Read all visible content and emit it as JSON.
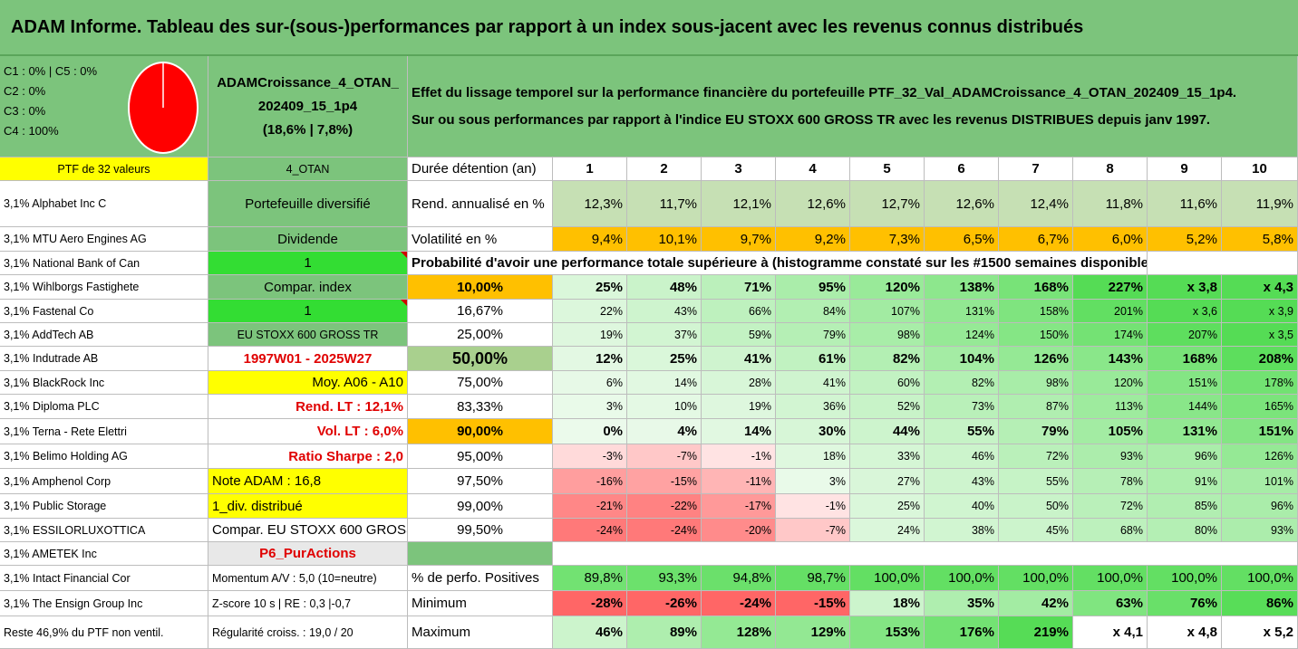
{
  "title": "ADAM Informe. Tableau des sur-(sous-)performances par rapport à un index sous-jacent avec les revenus connus distribués",
  "classes": {
    "c1c5": "C1 : 0% | C5 : 0%",
    "c2": "C2 : 0%",
    "c3": "C3 : 0%",
    "c4": "C4 : 100%"
  },
  "pie": {
    "color": "#ff0000",
    "c4_share": 1.0
  },
  "portfolio": {
    "name_line1": "ADAMCroissance_4_OTAN_",
    "name_line2": "202409_15_1p4",
    "name_line3": "(18,6% | 7,8%)"
  },
  "description": {
    "line1": "Effet du lissage temporel sur la performance financière du portefeuille PTF_32_Val_ADAMCroissance_4_OTAN_202409_15_1p4.",
    "line2": "Sur ou sous performances par rapport à l'indice EU STOXX 600 GROSS TR avec les revenus DISTRIBUES depuis janv 1997."
  },
  "ptf_header": "PTF de 32 valeurs",
  "holdings": [
    "3,1% Alphabet Inc C",
    "3,1% MTU Aero Engines AG",
    "3,1% National Bank of Can",
    "3,1% Wihlborgs Fastighete",
    "3,1% Fastenal Co",
    "3,1% AddTech AB",
    "3,1% Indutrade AB",
    "3,1% BlackRock Inc",
    "3,1% Diploma PLC",
    "3,1% Terna - Rete Elettri",
    "3,1% Belimo Holding AG",
    "3,1% Amphenol Corp",
    "3,1% Public Storage",
    "3,1% ESSILORLUXOTTICA",
    "3,1% AMETEK Inc",
    "3,1% Intact Financial Cor",
    "3,1% The Ensign Group Inc",
    "Reste 46,9% du PTF non ventil."
  ],
  "info": [
    "4_OTAN",
    "Portefeuille diversifié",
    "Dividende",
    "1",
    "Compar. index",
    "1",
    "EU STOXX 600 GROSS TR",
    "1997W01 - 2025W27",
    "Moy. A06 - A10",
    "Rend. LT : 12,1%",
    "Vol. LT : 6,0%",
    "Ratio Sharpe : 2,0",
    "Note ADAM : 16,8",
    "1_div. distribué",
    "Compar. EU STOXX 600 GROSS TR",
    "P6_PurActions",
    "Momentum A/V : 5,0 (10=neutre)",
    "Z-score 10 s | RE : 0,3 |-0,7",
    "Régularité croiss. : 19,0 / 20"
  ],
  "table": {
    "duration_label": "Durée détention (an)",
    "years": [
      "1",
      "2",
      "3",
      "4",
      "5",
      "6",
      "7",
      "8",
      "9",
      "10"
    ],
    "rend_label": "Rend. annualisé en %",
    "rend": [
      "12,3%",
      "11,7%",
      "12,1%",
      "12,6%",
      "12,7%",
      "12,6%",
      "12,4%",
      "11,8%",
      "11,6%",
      "11,9%"
    ],
    "vol_label": "Volatilité en %",
    "vol": [
      "9,4%",
      "10,1%",
      "9,7%",
      "9,2%",
      "7,3%",
      "6,5%",
      "6,7%",
      "6,0%",
      "5,2%",
      "5,8%"
    ],
    "prob_header": "Probabilité d'avoir une performance totale supérieure à (histogramme constaté sur les #1500 semaines disponibles)",
    "prob_rows": [
      {
        "p": "10,00%",
        "v": [
          "25%",
          "48%",
          "71%",
          "95%",
          "120%",
          "138%",
          "168%",
          "227%",
          "x 3,8",
          "x 4,3"
        ]
      },
      {
        "p": "16,67%",
        "v": [
          "22%",
          "43%",
          "66%",
          "84%",
          "107%",
          "131%",
          "158%",
          "201%",
          "x 3,6",
          "x 3,9"
        ]
      },
      {
        "p": "25,00%",
        "v": [
          "19%",
          "37%",
          "59%",
          "79%",
          "98%",
          "124%",
          "150%",
          "174%",
          "207%",
          "x 3,5"
        ]
      },
      {
        "p": "50,00%",
        "v": [
          "12%",
          "25%",
          "41%",
          "61%",
          "82%",
          "104%",
          "126%",
          "143%",
          "168%",
          "208%"
        ]
      },
      {
        "p": "75,00%",
        "v": [
          "6%",
          "14%",
          "28%",
          "41%",
          "60%",
          "82%",
          "98%",
          "120%",
          "151%",
          "178%"
        ]
      },
      {
        "p": "83,33%",
        "v": [
          "3%",
          "10%",
          "19%",
          "36%",
          "52%",
          "73%",
          "87%",
          "113%",
          "144%",
          "165%"
        ]
      },
      {
        "p": "90,00%",
        "v": [
          "0%",
          "4%",
          "14%",
          "30%",
          "44%",
          "55%",
          "79%",
          "105%",
          "131%",
          "151%"
        ]
      },
      {
        "p": "95,00%",
        "v": [
          "-3%",
          "-7%",
          "-1%",
          "18%",
          "33%",
          "46%",
          "72%",
          "93%",
          "96%",
          "126%"
        ]
      },
      {
        "p": "97,50%",
        "v": [
          "-16%",
          "-15%",
          "-11%",
          "3%",
          "27%",
          "43%",
          "55%",
          "78%",
          "91%",
          "101%"
        ]
      },
      {
        "p": "99,00%",
        "v": [
          "-21%",
          "-22%",
          "-17%",
          "-1%",
          "25%",
          "40%",
          "50%",
          "72%",
          "85%",
          "96%"
        ]
      },
      {
        "p": "99,50%",
        "v": [
          "-24%",
          "-24%",
          "-20%",
          "-7%",
          "24%",
          "38%",
          "45%",
          "68%",
          "80%",
          "93%"
        ]
      }
    ],
    "positive_label": "% de perfo. Positives",
    "positive": [
      "89,8%",
      "93,3%",
      "94,8%",
      "98,7%",
      "100,0%",
      "100,0%",
      "100,0%",
      "100,0%",
      "100,0%",
      "100,0%"
    ],
    "min_label": "Minimum",
    "min": [
      "-28%",
      "-26%",
      "-24%",
      "-15%",
      "18%",
      "35%",
      "42%",
      "63%",
      "76%",
      "86%"
    ],
    "max_label": "Maximum",
    "max": [
      "46%",
      "89%",
      "128%",
      "129%",
      "153%",
      "176%",
      "219%",
      "x 4,1",
      "x 4,8",
      "x 5,2"
    ]
  }
}
